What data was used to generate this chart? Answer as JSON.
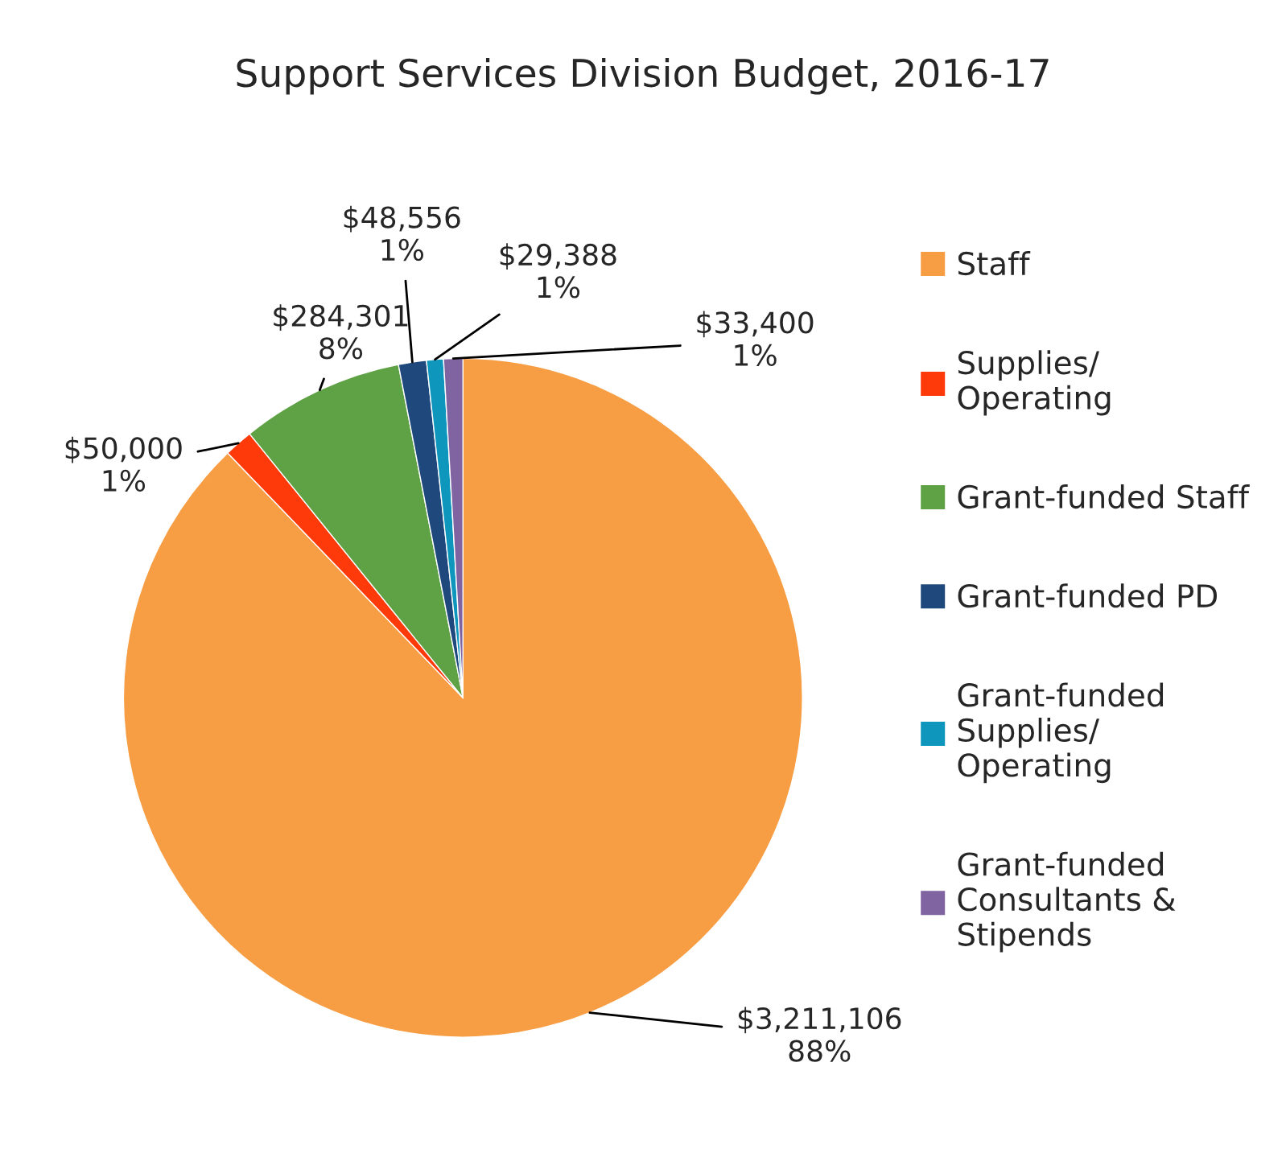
{
  "chart_data": {
    "type": "pie",
    "title": "Support Services Division Budget, 2016-17",
    "categories": [
      "Staff",
      "Supplies/\nOperating",
      "Grant-funded Staff",
      "Grant-funded PD",
      "Grant-funded\nSupplies/\nOperating",
      "Grant-funded\nConsultants &\nStipends"
    ],
    "values": [
      3211106,
      50000,
      284301,
      48556,
      29388,
      33400
    ],
    "value_labels": [
      "$3,211,106\n88%",
      "$50,000\n1%",
      "$284,301\n8%",
      "$48,556\n1%",
      "$29,388\n1%",
      "$33,400\n1%"
    ],
    "colors": [
      "#f79d43",
      "#ff3a0a",
      "#5fa245",
      "#1f497d",
      "#0f96bd",
      "#8064a2"
    ],
    "legend": "right"
  }
}
